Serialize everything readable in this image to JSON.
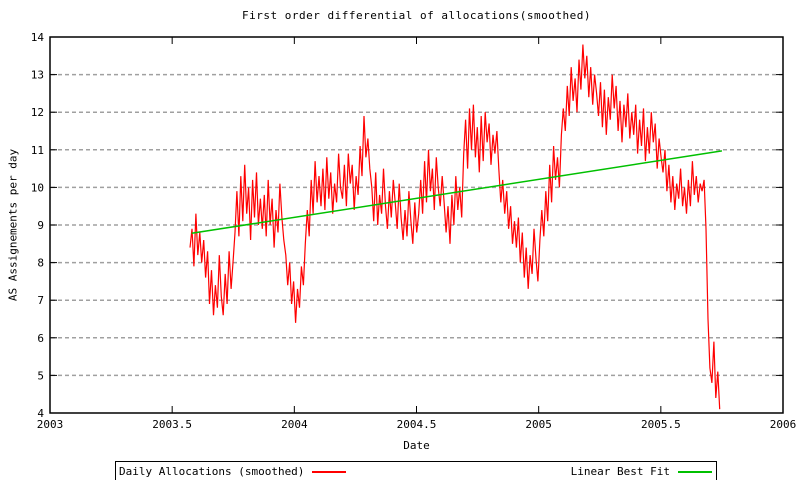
{
  "chart_data": {
    "type": "line",
    "title": "First order differential of allocations(smoothed)",
    "xlabel": "Date",
    "ylabel": "AS Assignements per day",
    "xlim": [
      2003,
      2006
    ],
    "ylim": [
      4,
      14
    ],
    "x_ticks": [
      2003,
      2003.5,
      2004,
      2004.5,
      2005,
      2005.5,
      2006
    ],
    "x_tick_labels": [
      "2003",
      "2003.5",
      "2004",
      "2004.5",
      "2005",
      "2005.5",
      "2006"
    ],
    "y_ticks": [
      4,
      5,
      6,
      7,
      8,
      9,
      10,
      11,
      12,
      13,
      14
    ],
    "y_tick_labels": [
      "4",
      "5",
      "6",
      "7",
      "8",
      "9",
      "10",
      "11",
      "12",
      "13",
      "14"
    ],
    "grid": "horizontal-dashed",
    "legend_position": "below-plot",
    "series": [
      {
        "name": "Daily Allocations (smoothed)",
        "color": "#ff0000",
        "type": "noisy-line",
        "x_start": 2003.573,
        "x_step": 0.008,
        "values": [
          8.4,
          8.9,
          7.9,
          9.3,
          8.2,
          8.8,
          8.0,
          8.6,
          7.6,
          8.3,
          6.9,
          7.8,
          6.6,
          7.4,
          6.8,
          8.2,
          7.1,
          6.6,
          7.7,
          6.9,
          8.3,
          7.3,
          8.0,
          8.8,
          9.9,
          8.7,
          10.3,
          9.1,
          10.6,
          9.3,
          10.0,
          8.6,
          10.2,
          9.2,
          10.4,
          9.0,
          9.7,
          8.9,
          9.8,
          8.7,
          10.2,
          9.0,
          9.7,
          8.4,
          9.4,
          8.8,
          10.1,
          9.2,
          8.6,
          8.2,
          7.4,
          8.0,
          6.9,
          7.5,
          6.4,
          7.3,
          6.8,
          7.9,
          7.4,
          8.5,
          9.4,
          8.7,
          10.2,
          9.3,
          10.7,
          9.6,
          10.3,
          9.5,
          10.5,
          9.4,
          10.8,
          9.7,
          10.4,
          9.3,
          10.1,
          9.6,
          10.9,
          10.0,
          9.7,
          10.6,
          9.5,
          10.9,
          10.1,
          10.6,
          9.4,
          10.3,
          9.8,
          11.1,
          10.3,
          11.9,
          10.8,
          11.3,
          10.5,
          10.0,
          9.1,
          10.4,
          9.0,
          9.8,
          9.3,
          10.5,
          9.5,
          8.9,
          9.9,
          9.2,
          10.2,
          9.6,
          8.9,
          10.1,
          9.2,
          8.6,
          9.4,
          8.7,
          9.9,
          9.1,
          8.5,
          9.6,
          8.8,
          9.3,
          10.2,
          9.3,
          10.7,
          9.6,
          11.0,
          9.9,
          10.5,
          9.4,
          10.8,
          10.0,
          9.5,
          10.3,
          9.6,
          8.8,
          9.5,
          8.5,
          9.8,
          9.0,
          10.3,
          9.4,
          10.0,
          9.2,
          10.9,
          11.8,
          10.5,
          12.1,
          11.0,
          12.2,
          10.8,
          11.6,
          10.4,
          11.9,
          10.7,
          12.0,
          11.2,
          11.7,
          10.6,
          11.4,
          10.9,
          11.5,
          10.5,
          9.6,
          10.2,
          9.3,
          9.9,
          8.9,
          9.5,
          8.5,
          9.1,
          8.4,
          9.2,
          8.0,
          8.8,
          7.6,
          8.4,
          7.3,
          8.2,
          7.7,
          8.9,
          8.1,
          7.5,
          8.6,
          9.4,
          8.7,
          9.9,
          9.1,
          10.6,
          9.6,
          11.1,
          10.2,
          10.8,
          10.0,
          11.4,
          12.1,
          11.5,
          12.7,
          11.9,
          13.2,
          12.3,
          12.9,
          12.0,
          13.4,
          12.6,
          13.8,
          12.9,
          13.5,
          12.4,
          13.2,
          12.2,
          13.0,
          12.5,
          11.9,
          12.8,
          11.6,
          12.6,
          11.4,
          12.4,
          11.8,
          13.0,
          12.1,
          12.7,
          11.5,
          12.3,
          11.2,
          12.2,
          11.6,
          12.5,
          11.3,
          12.0,
          11.4,
          12.2,
          10.9,
          11.8,
          11.1,
          12.1,
          10.7,
          11.6,
          10.9,
          12.0,
          11.2,
          11.7,
          10.5,
          11.3,
          10.8,
          10.4,
          11.0,
          9.9,
          10.6,
          9.6,
          10.3,
          9.4,
          10.1,
          9.7,
          10.5,
          9.5,
          10.0,
          9.3,
          10.2,
          9.5,
          10.7,
          9.8,
          10.3,
          9.6,
          10.1,
          9.9,
          10.2,
          8.9,
          6.5,
          5.2,
          4.8,
          5.9,
          4.4,
          5.1,
          4.1
        ]
      },
      {
        "name": "Linear Best Fit",
        "color": "#00c000",
        "type": "line",
        "points": [
          [
            2003.58,
            8.78
          ],
          [
            2005.75,
            10.97
          ]
        ]
      }
    ]
  },
  "legend": {
    "items": [
      {
        "label": "Daily Allocations (smoothed)",
        "color": "#ff0000"
      },
      {
        "label": "Linear Best Fit",
        "color": "#00c000"
      }
    ]
  },
  "colors": {
    "background": "#ffffff",
    "border": "#000000",
    "grid": "#a0a0a0",
    "text": "#000000",
    "series_red": "#ff0000",
    "series_green": "#00c000"
  }
}
